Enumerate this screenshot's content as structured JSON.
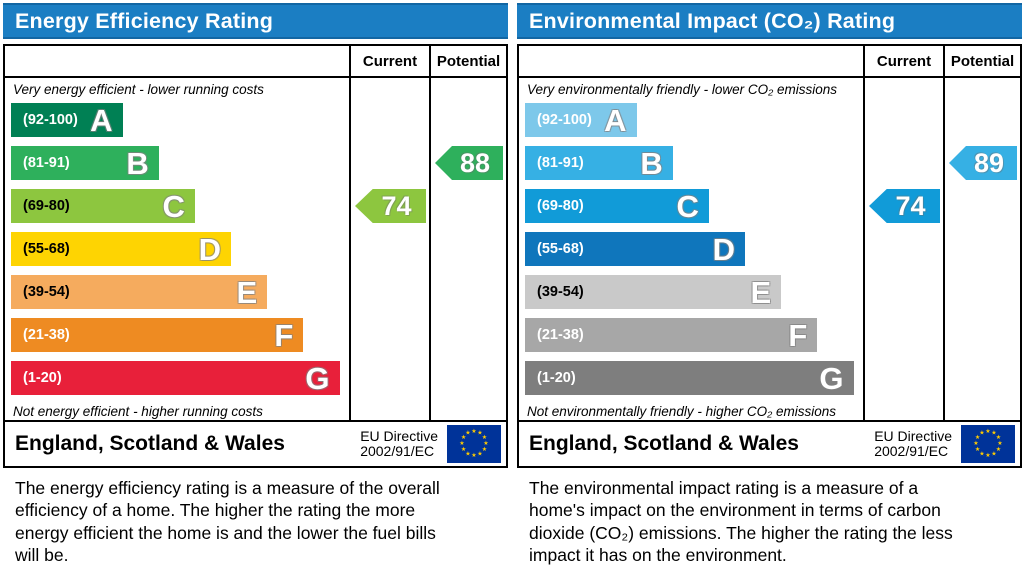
{
  "colors": {
    "header_bg": "#1b7ec3",
    "header_text": "#ffffff",
    "flag_bg": "#003399",
    "flag_star": "#ffcc00",
    "table_border": "#000000"
  },
  "chart_data": [
    {
      "type": "bar",
      "title": "Energy Efficiency Rating",
      "top_caption": "Very energy efficient - lower running costs",
      "bottom_caption": "Not energy efficient - higher running costs",
      "bands": [
        {
          "letter": "A",
          "range": "(92-100)",
          "min": 92,
          "max": 100,
          "color": "#008054",
          "text_color": "#ffffff",
          "width_pct": 33
        },
        {
          "letter": "B",
          "range": "(81-91)",
          "min": 81,
          "max": 91,
          "color": "#2eb05c",
          "text_color": "#ffffff",
          "width_pct": 43.7
        },
        {
          "letter": "C",
          "range": "(69-80)",
          "min": 69,
          "max": 80,
          "color": "#8dc63f",
          "text_color": "#000000",
          "width_pct": 54.4
        },
        {
          "letter": "D",
          "range": "(55-68)",
          "min": 55,
          "max": 68,
          "color": "#fed402",
          "text_color": "#000000",
          "width_pct": 65.1
        },
        {
          "letter": "E",
          "range": "(39-54)",
          "min": 39,
          "max": 54,
          "color": "#f5ab5e",
          "text_color": "#000000",
          "width_pct": 75.8
        },
        {
          "letter": "F",
          "range": "(21-38)",
          "min": 21,
          "max": 38,
          "color": "#ee8b22",
          "text_color": "#ffffff",
          "width_pct": 86.5
        },
        {
          "letter": "G",
          "range": "(1-20)",
          "min": 1,
          "max": 20,
          "color": "#e8203a",
          "text_color": "#ffffff",
          "width_pct": 97.2
        }
      ],
      "current": {
        "label": "Current",
        "value": 74,
        "band": "C"
      },
      "potential": {
        "label": "Potential",
        "value": 88,
        "band": "B"
      },
      "footer": {
        "region": "England, Scotland & Wales",
        "directive": [
          "EU Directive",
          "2002/91/EC"
        ]
      },
      "description": "The energy efficiency rating is a measure of the overall efficiency of a home. The higher the rating the more energy efficient the home is and the lower the fuel bills will be."
    },
    {
      "type": "bar",
      "title": "Environmental Impact (CO₂) Rating",
      "top_caption": "Very environmentally friendly - lower CO₂ emissions",
      "bottom_caption": "Not environmentally friendly - higher CO₂ emissions",
      "bands": [
        {
          "letter": "A",
          "range": "(92-100)",
          "min": 92,
          "max": 100,
          "color": "#7dc8ea",
          "text_color": "#ffffff",
          "width_pct": 33
        },
        {
          "letter": "B",
          "range": "(81-91)",
          "min": 81,
          "max": 91,
          "color": "#36b0e4",
          "text_color": "#ffffff",
          "width_pct": 43.7
        },
        {
          "letter": "C",
          "range": "(69-80)",
          "min": 69,
          "max": 80,
          "color": "#119bd8",
          "text_color": "#ffffff",
          "width_pct": 54.4
        },
        {
          "letter": "D",
          "range": "(55-68)",
          "min": 55,
          "max": 68,
          "color": "#0f76bc",
          "text_color": "#ffffff",
          "width_pct": 65.1
        },
        {
          "letter": "E",
          "range": "(39-54)",
          "min": 39,
          "max": 54,
          "color": "#c9c9c9",
          "text_color": "#000000",
          "width_pct": 75.8
        },
        {
          "letter": "F",
          "range": "(21-38)",
          "min": 21,
          "max": 38,
          "color": "#a7a7a7",
          "text_color": "#ffffff",
          "width_pct": 86.5
        },
        {
          "letter": "G",
          "range": "(1-20)",
          "min": 1,
          "max": 20,
          "color": "#7e7e7e",
          "text_color": "#ffffff",
          "width_pct": 97.2
        }
      ],
      "current": {
        "label": "Current",
        "value": 74,
        "band": "C"
      },
      "potential": {
        "label": "Potential",
        "value": 89,
        "band": "B"
      },
      "footer": {
        "region": "England, Scotland & Wales",
        "directive": [
          "EU Directive",
          "2002/91/EC"
        ]
      },
      "description": "The environmental impact rating is a measure of a home's impact on the environment in terms of carbon dioxide (CO₂) emissions. The higher the rating the less impact it has on the environment."
    }
  ]
}
